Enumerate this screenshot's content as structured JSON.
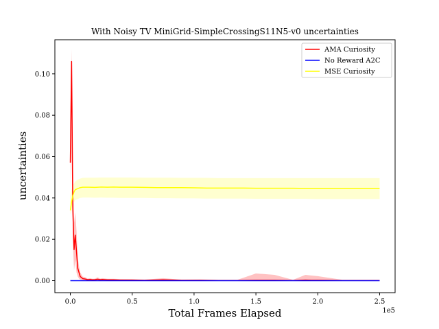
{
  "chart_data": {
    "type": "line",
    "title": "With Noisy TV MiniGrid-SimpleCrossingS11N5-v0 uncertainties",
    "xlabel": "Total Frames Elapsed",
    "ylabel": "uncertainties",
    "x_offset_label": "1e5",
    "xlim": [
      -0.125,
      2.625
    ],
    "ylim": [
      -0.0058,
      0.1165
    ],
    "x_ticks": [
      0.0,
      0.5,
      1.0,
      1.5,
      2.0,
      2.5
    ],
    "x_tick_labels": [
      "0.0",
      "0.5",
      "1.0",
      "1.5",
      "2.0",
      "2.5"
    ],
    "y_ticks": [
      0.0,
      0.02,
      0.04,
      0.06,
      0.08,
      0.1
    ],
    "y_tick_labels": [
      "0.00",
      "0.02",
      "0.04",
      "0.06",
      "0.08",
      "0.10"
    ],
    "grid": false,
    "legend_position": "top-right",
    "series": [
      {
        "name": "AMA Curiosity",
        "color": "#ff0000",
        "band_color": "#ffb3b3",
        "x": [
          0.0,
          0.01,
          0.02,
          0.03,
          0.04,
          0.05,
          0.06,
          0.07,
          0.08,
          0.09,
          0.1,
          0.12,
          0.14,
          0.16,
          0.18,
          0.2,
          0.22,
          0.24,
          0.26,
          0.3,
          0.35,
          0.4,
          0.5,
          0.6,
          0.75,
          0.9,
          1.05,
          1.2,
          1.35,
          1.5,
          1.65,
          1.8,
          1.9,
          1.95,
          2.0,
          2.2,
          2.5
        ],
        "y": [
          0.057,
          0.106,
          0.035,
          0.015,
          0.022,
          0.014,
          0.006,
          0.004,
          0.002,
          0.0015,
          0.001,
          0.0008,
          0.0005,
          0.0006,
          0.0004,
          0.0005,
          0.0007,
          0.0005,
          0.0006,
          0.0004,
          0.0004,
          0.0003,
          0.0003,
          0.0002,
          0.0004,
          0.0002,
          0.0002,
          0.0001,
          0.0001,
          0.0002,
          0.0002,
          0.0001,
          0.0003,
          0.0002,
          0.0002,
          0.0001,
          0.0001
        ],
        "lower": [
          0.045,
          0.095,
          0.02,
          0.005,
          0.01,
          0.004,
          0.002,
          0.001,
          0.0005,
          0.0003,
          0.0002,
          0.0001,
          0.0001,
          0.0001,
          0.0001,
          0.0001,
          0.0001,
          0.0001,
          0.0001,
          0.0001,
          0.0001,
          0.0,
          0.0,
          0.0,
          0.0,
          0.0,
          0.0,
          0.0,
          0.0,
          0.0,
          0.0,
          0.0,
          0.0,
          0.0,
          0.0,
          0.0,
          0.0
        ],
        "upper": [
          0.066,
          0.112,
          0.06,
          0.028,
          0.033,
          0.024,
          0.011,
          0.007,
          0.004,
          0.003,
          0.002,
          0.0017,
          0.001,
          0.0012,
          0.0009,
          0.001,
          0.0016,
          0.001,
          0.0012,
          0.0009,
          0.0009,
          0.0008,
          0.0007,
          0.0005,
          0.0012,
          0.0005,
          0.0006,
          0.0004,
          0.0004,
          0.0035,
          0.0028,
          0.0004,
          0.0028,
          0.0025,
          0.0022,
          0.0004,
          0.0004
        ]
      },
      {
        "name": "No Reward A2C",
        "color": "#0000ff",
        "band_color": "#b3b3ff",
        "x": [
          0.0,
          2.5
        ],
        "y": [
          0.0,
          0.0
        ],
        "lower": [
          0.0,
          0.0
        ],
        "upper": [
          0.0,
          0.0
        ]
      },
      {
        "name": "MSE Curiosity",
        "color": "#ffff00",
        "band_color": "#ffffc4",
        "x": [
          0.0,
          0.01,
          0.02,
          0.03,
          0.04,
          0.06,
          0.08,
          0.1,
          0.15,
          0.2,
          0.25,
          0.3,
          0.35,
          0.4,
          0.5,
          0.6,
          0.7,
          0.8,
          0.9,
          1.0,
          1.1,
          1.2,
          1.3,
          1.4,
          1.5,
          1.6,
          1.7,
          1.8,
          1.9,
          2.0,
          2.1,
          2.2,
          2.3,
          2.4,
          2.5
        ],
        "y": [
          0.034,
          0.038,
          0.041,
          0.043,
          0.044,
          0.0445,
          0.045,
          0.0452,
          0.0452,
          0.0451,
          0.0453,
          0.0452,
          0.0453,
          0.0452,
          0.0452,
          0.0451,
          0.045,
          0.045,
          0.045,
          0.0449,
          0.0448,
          0.0448,
          0.0448,
          0.0448,
          0.0447,
          0.0447,
          0.0447,
          0.0447,
          0.0446,
          0.0446,
          0.0446,
          0.0446,
          0.0446,
          0.0446,
          0.0446
        ],
        "lower": [
          0.032,
          0.034,
          0.037,
          0.038,
          0.039,
          0.0395,
          0.04,
          0.0402,
          0.0402,
          0.0401,
          0.0402,
          0.0401,
          0.0401,
          0.04,
          0.04,
          0.04,
          0.0399,
          0.0399,
          0.0398,
          0.0398,
          0.0397,
          0.0397,
          0.0397,
          0.0397,
          0.0396,
          0.0396,
          0.0396,
          0.0396,
          0.0396,
          0.0395,
          0.0395,
          0.0395,
          0.0395,
          0.0395,
          0.0395
        ],
        "upper": [
          0.041,
          0.044,
          0.046,
          0.047,
          0.048,
          0.0488,
          0.0494,
          0.0497,
          0.0498,
          0.0498,
          0.0499,
          0.0499,
          0.0499,
          0.0499,
          0.0499,
          0.0498,
          0.0498,
          0.0498,
          0.0497,
          0.0497,
          0.0497,
          0.0496,
          0.0496,
          0.0496,
          0.0496,
          0.0496,
          0.0496,
          0.0496,
          0.0496,
          0.0496,
          0.0496,
          0.0496,
          0.0496,
          0.0496,
          0.0496
        ]
      }
    ]
  }
}
